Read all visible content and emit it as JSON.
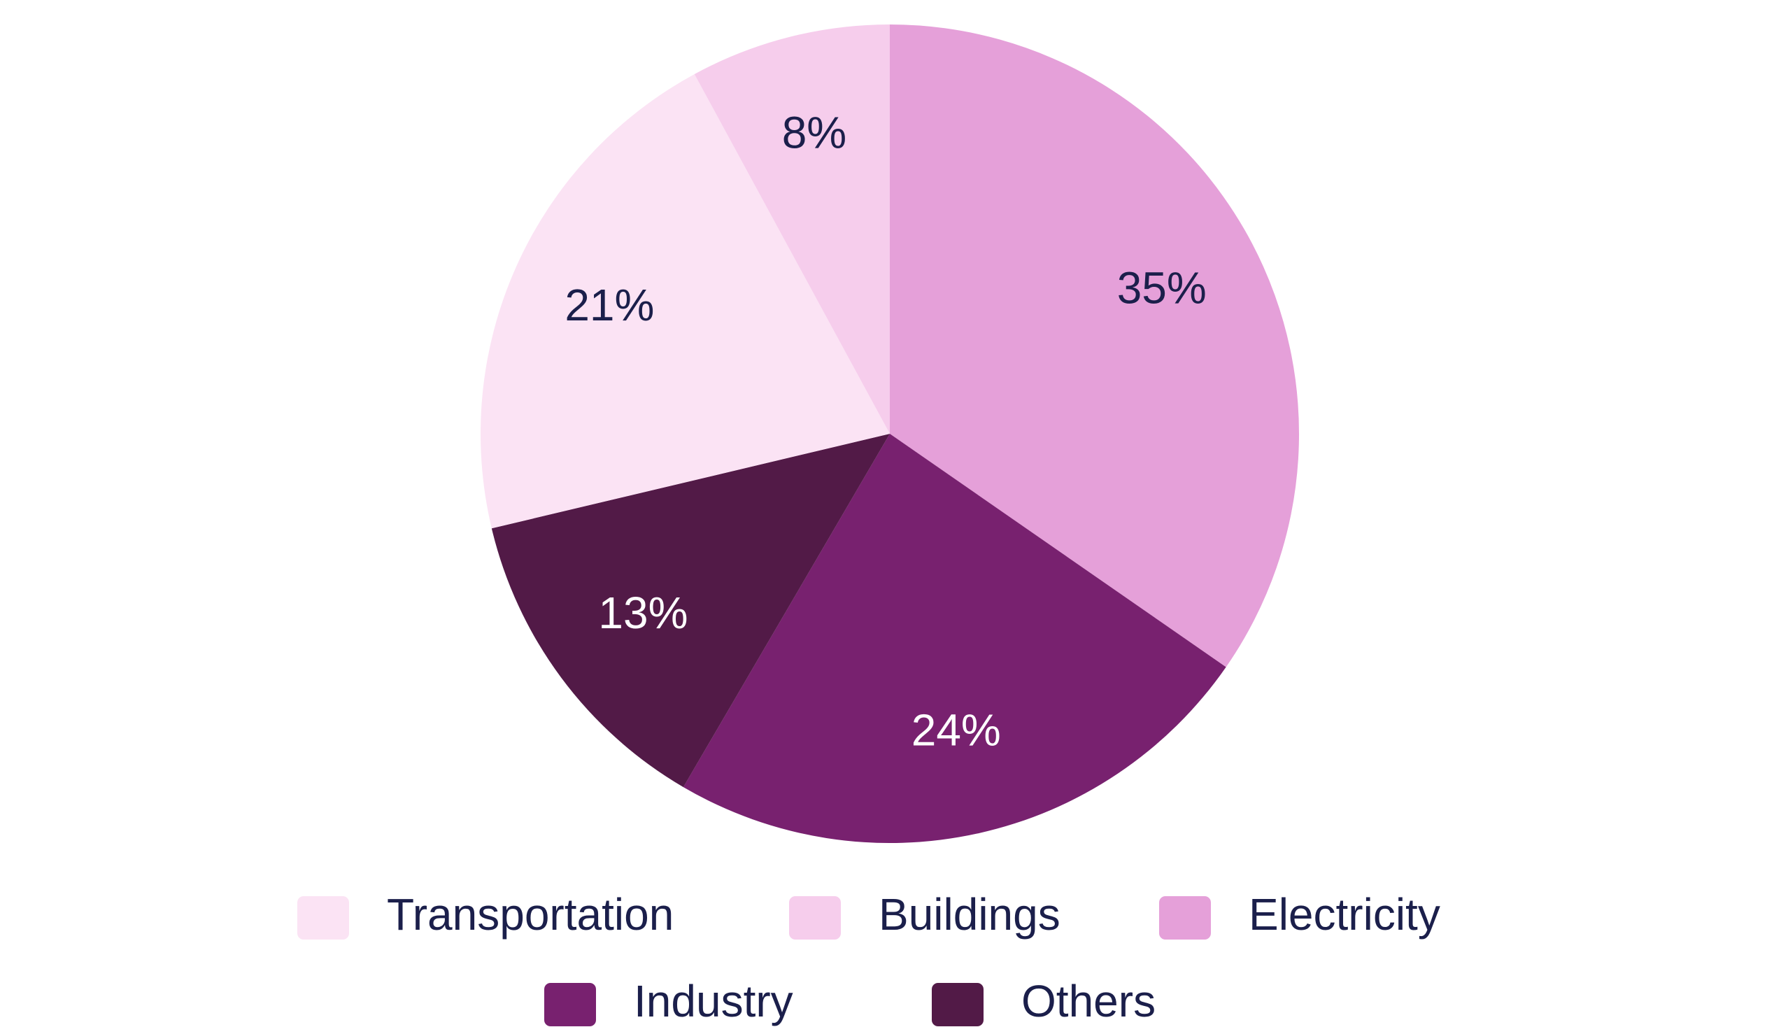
{
  "chart_data": {
    "type": "pie",
    "slices": [
      {
        "label": "Electricity",
        "value": 35,
        "value_label": "35%",
        "color": "#e5a0d9",
        "label_color": "#1b1f4b"
      },
      {
        "label": "Industry",
        "value": 24,
        "value_label": "24%",
        "color": "#78216f",
        "label_color": "#ffffff"
      },
      {
        "label": "Others",
        "value": 13,
        "value_label": "13%",
        "color": "#521a47",
        "label_color": "#ffffff"
      },
      {
        "label": "Transportation",
        "value": 21,
        "value_label": "21%",
        "color": "#fbe3f4",
        "label_color": "#1b1f4b"
      },
      {
        "label": "Buildings",
        "value": 8,
        "value_label": "8%",
        "color": "#f6cdec",
        "label_color": "#1b1f4b"
      }
    ],
    "start_position": "top, clockwise",
    "legend": {
      "placement": "bottom",
      "rows": [
        [
          "Transportation",
          "Buildings",
          "Electricity"
        ],
        [
          "Industry",
          "Others"
        ]
      ]
    },
    "label_text_color": "#1b1f4b"
  }
}
